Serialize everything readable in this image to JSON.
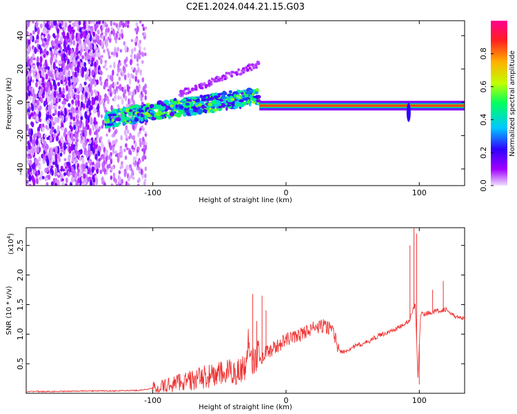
{
  "title": "C2E1.2024.044.21.15.G03",
  "chart_data": [
    {
      "type": "heatmap",
      "xlabel": "Height of straight line (km)",
      "ylabel": "Frequency (Hz)",
      "xlim": [
        -195,
        134
      ],
      "ylim": [
        -50,
        49
      ],
      "xticks": [
        -100,
        0,
        100
      ],
      "yticks": [
        -40,
        -20,
        0,
        20,
        40
      ],
      "colorbar": {
        "label": "Normalized spectral amplitude",
        "range": [
          0,
          1
        ],
        "ticks": [
          0.0,
          0.2,
          0.4,
          0.6,
          0.8
        ],
        "colors": [
          "#f0e0ff",
          "#a000ff",
          "#3000ff",
          "#00c8ff",
          "#00ff60",
          "#c0ff00",
          "#ffb000",
          "#ff2020",
          "#ff0090"
        ]
      },
      "features": [
        {
          "x": [
            -195,
            -140
          ],
          "freq": [
            -48,
            48
          ],
          "amplitude": 0.2
        },
        {
          "x": [
            -140,
            -105
          ],
          "freq": [
            -48,
            48
          ],
          "amplitude": 0.08
        },
        {
          "x": [
            -135,
            -20
          ],
          "freq": [
            -12,
            10
          ],
          "amplitude": 0.5
        },
        {
          "x": [
            -20,
            134
          ],
          "freq": [
            -2,
            -2
          ],
          "amplitude": 0.85
        }
      ],
      "grid": false
    },
    {
      "type": "line",
      "xlabel": "Height of straight line (km)",
      "ylabel": "SNR (10 * v/v)",
      "scale_label": "(x10",
      "scale_exp": "4",
      "scale_close": ")",
      "xlim": [
        -195,
        134
      ],
      "ylim": [
        0,
        2.8
      ],
      "xticks": [
        -100,
        0,
        100
      ],
      "yticks": [
        0.5,
        1.0,
        1.5,
        2.0,
        2.5
      ],
      "color": "#ee3333",
      "grid": false,
      "series": [
        {
          "x": [
            -195,
            -170,
            -150,
            -130,
            -110,
            -90,
            -80,
            -70,
            -60,
            -50,
            -40,
            -35,
            -30,
            -28,
            -25,
            -22,
            -20,
            -18,
            -15,
            -10,
            -5,
            0,
            5,
            10,
            15,
            20,
            25,
            28,
            30,
            35,
            38,
            40,
            45,
            50,
            55,
            60,
            65,
            70,
            75,
            80,
            85,
            90,
            93,
            95,
            97,
            99,
            101,
            103,
            105,
            110,
            115,
            120,
            125,
            130,
            134
          ],
          "y": [
            0.03,
            0.03,
            0.04,
            0.04,
            0.05,
            0.12,
            0.2,
            0.22,
            0.28,
            0.32,
            0.36,
            0.38,
            0.45,
            0.95,
            0.55,
            0.65,
            0.62,
            0.6,
            0.7,
            0.75,
            0.82,
            0.9,
            0.95,
            0.98,
            1.05,
            1.1,
            1.12,
            1.14,
            1.12,
            1.1,
            0.85,
            0.7,
            0.72,
            0.78,
            0.82,
            0.85,
            0.92,
            0.98,
            1.02,
            1.06,
            1.12,
            1.18,
            1.25,
            1.4,
            1.5,
            0.3,
            1.35,
            1.33,
            1.35,
            1.38,
            1.4,
            1.42,
            1.32,
            1.28,
            1.25
          ]
        }
      ],
      "spikes": [
        {
          "x": -25,
          "y": 1.68
        },
        {
          "x": -22,
          "y": 1.22
        },
        {
          "x": -18,
          "y": 1.65
        },
        {
          "x": -15,
          "y": 1.4
        },
        {
          "x": 93,
          "y": 2.5
        },
        {
          "x": 96,
          "y": 2.8
        },
        {
          "x": 98,
          "y": 2.7
        },
        {
          "x": 100,
          "y": 0.15
        },
        {
          "x": 110,
          "y": 1.75
        },
        {
          "x": 118,
          "y": 1.9
        }
      ]
    }
  ]
}
